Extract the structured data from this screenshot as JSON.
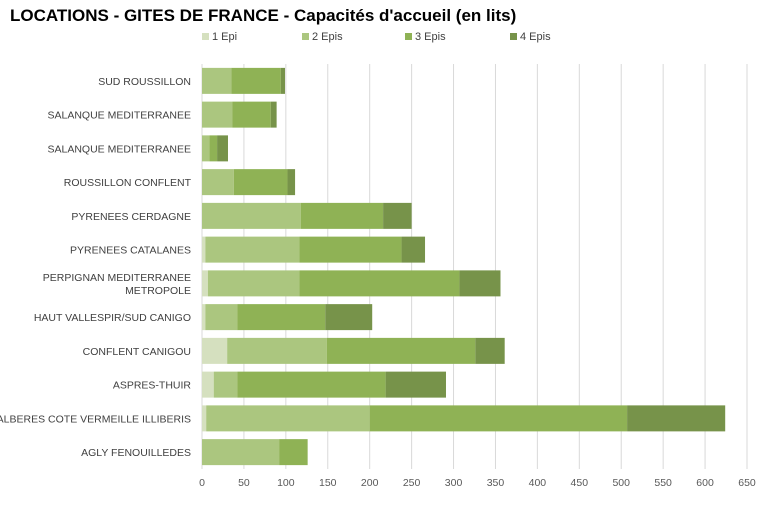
{
  "chart_data": {
    "type": "bar",
    "orientation": "horizontal",
    "stacked": true,
    "title": "LOCATIONS - GITES DE FRANCE - Capacités d'accueil (en lits)",
    "xlabel": "",
    "ylabel": "",
    "xlim": [
      0,
      650
    ],
    "x_ticks": [
      0,
      50,
      100,
      150,
      200,
      250,
      300,
      350,
      400,
      450,
      500,
      550,
      600,
      650
    ],
    "grid": true,
    "legend_position": "top",
    "categories": [
      [
        "SUD ROUSSILLON"
      ],
      [
        "SALANQUE MEDITERRANEE"
      ],
      [
        "SALANQUE MEDITERRANEE"
      ],
      [
        "ROUSSILLON CONFLENT"
      ],
      [
        "PYRENEES CERDAGNE"
      ],
      [
        "PYRENEES CATALANES"
      ],
      [
        "PERPIGNAN MEDITERRANEE",
        "METROPOLE"
      ],
      [
        "HAUT VALLESPIR/SUD CANIGO"
      ],
      [
        "CONFLENT CANIGOU"
      ],
      [
        "ASPRES-THUIR"
      ],
      [
        "ALBERES COTE VERMEILLE ILLIBERIS"
      ],
      [
        "AGLY FENOUILLEDES"
      ]
    ],
    "series": [
      {
        "name": "1 Epi",
        "color": "#d5e0bf",
        "values": [
          0,
          0,
          0,
          0,
          0,
          4,
          7,
          4,
          30,
          14,
          5,
          0
        ]
      },
      {
        "name": "2 Epis",
        "color": "#abc67f",
        "values": [
          35,
          36,
          9,
          38,
          118,
          112,
          109,
          38,
          119,
          28,
          195,
          92
        ]
      },
      {
        "name": "3 Epis",
        "color": "#8fb255",
        "values": [
          59,
          46,
          9,
          64,
          98,
          122,
          191,
          105,
          177,
          177,
          307,
          34
        ]
      },
      {
        "name": "4 Epis",
        "color": "#77934a",
        "values": [
          5,
          7,
          13,
          9,
          34,
          28,
          49,
          56,
          35,
          72,
          117,
          0
        ]
      }
    ]
  }
}
